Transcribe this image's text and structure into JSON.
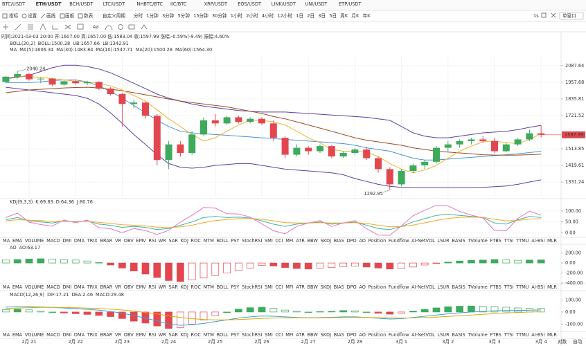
{
  "tabs": [
    "BTC/USDT",
    "ETH/USDT",
    "BCH/USDT",
    "LTC/USDT",
    "NHBTC/BTC",
    "IIC/BTC",
    "XRP/USDT",
    "EOS/USDT",
    "LINK/USDT",
    "UNI/USDT",
    "ETP/USDT"
  ],
  "active_tab": 1,
  "toolbar": [
    "指标",
    "设置",
    "画线",
    "画板",
    "数表"
  ],
  "custom_period": "自定义周期",
  "periods": [
    "分时",
    "1分钟",
    "3分钟",
    "5分钟",
    "15分钟",
    "30分钟",
    "1小时",
    "2小时",
    "4小时",
    "12小时",
    "1日",
    "2日",
    "3日",
    "5日",
    "周K",
    "月K",
    "年K"
  ],
  "active_period": 8,
  "speed": "1s",
  "window_mode": "单窗口",
  "tool_text": "Aa",
  "info": "时间:2021-03-03 20:00  开:1607.00  高:1657.00  低:1583.04  收:1597.99  涨幅:-0.59%(-9.49)  振幅:4.60%",
  "indicators": [
    "MA",
    "EMA",
    "VOLUME",
    "MACD",
    "DMI",
    "DMA",
    "TRIX",
    "BRAR",
    "VR",
    "OBV",
    "EMV",
    "RSI",
    "WR",
    "SAR",
    "KDJ",
    "ROC",
    "MTM",
    "BOLL",
    "PSY",
    "StochRSI",
    "SMI",
    "CCI",
    "MFI",
    "ATR",
    "BBW",
    "SKDJ",
    "BIAS",
    "DPO",
    "AO",
    "Position",
    "Fundflow",
    "AI-NetVOL",
    "LSUR",
    "BASIS",
    "TVolume",
    "FTBS",
    "TTSI",
    "TTMU",
    "AI-BSI",
    "MLR"
  ],
  "dim_indicators": [
    31,
    38
  ],
  "active_indicator_per_row": [
    14,
    28,
    3
  ],
  "scale_buttons": [
    "对数",
    "自动"
  ],
  "chart_data": [
    {
      "type": "candlestick",
      "log": true,
      "grid": true,
      "up_color": "#3daa5c",
      "down_color": "#e2474f",
      "categories": [
        null,
        null,
        "2月 21",
        null,
        null,
        null,
        "2月 22",
        null,
        null,
        null,
        "2月 23",
        null,
        null,
        null,
        "2月 24",
        null,
        null,
        null,
        "2月 25",
        null,
        null,
        null,
        "2月 26",
        null,
        null,
        null,
        "2月 27",
        null,
        null,
        null,
        "2月 28",
        null,
        null,
        null,
        "3月 1",
        null,
        null,
        null,
        "3月 2",
        null,
        null,
        null,
        "3月 3",
        null,
        null,
        null,
        "3月 4"
      ],
      "open": [
        1960,
        2000,
        2020,
        1980,
        1985,
        1940,
        1965,
        1950,
        1960,
        1910,
        1870,
        1800,
        1810,
        1720,
        1450,
        1540,
        1490,
        1600,
        1690,
        1670,
        1710,
        1680,
        1700,
        1670,
        1580,
        1480,
        1520,
        1500,
        1530,
        1470,
        1490,
        1510,
        1460,
        1400,
        1320,
        1390,
        1420,
        1440,
        1520,
        1540,
        1560,
        1570,
        1560,
        1500,
        1540,
        1570,
        1607
      ],
      "high": [
        2005,
        2040.24,
        2030,
        1995,
        1990,
        1975,
        1975,
        1970,
        1965,
        1920,
        1880,
        1830,
        1815,
        1730,
        1560,
        1560,
        1620,
        1710,
        1730,
        1720,
        1720,
        1710,
        1710,
        1690,
        1590,
        1540,
        1530,
        1540,
        1535,
        1500,
        1520,
        1525,
        1470,
        1410,
        1400,
        1430,
        1450,
        1530,
        1560,
        1570,
        1580,
        1590,
        1580,
        1550,
        1580,
        1630,
        1657
      ],
      "low": [
        1950,
        1985,
        1970,
        1950,
        1930,
        1930,
        1940,
        1935,
        1900,
        1860,
        1650,
        1770,
        1700,
        1420,
        1400,
        1470,
        1480,
        1590,
        1650,
        1660,
        1670,
        1670,
        1660,
        1560,
        1460,
        1470,
        1480,
        1490,
        1460,
        1460,
        1480,
        1450,
        1380,
        1292.95,
        1310,
        1380,
        1400,
        1430,
        1500,
        1520,
        1540,
        1550,
        1490,
        1495,
        1530,
        1560,
        1583.04
      ],
      "close": [
        2000,
        2020,
        1980,
        1985,
        1940,
        1965,
        1950,
        1960,
        1910,
        1870,
        1800,
        1810,
        1720,
        1450,
        1540,
        1490,
        1600,
        1690,
        1670,
        1710,
        1680,
        1700,
        1670,
        1580,
        1480,
        1520,
        1500,
        1530,
        1470,
        1490,
        1510,
        1460,
        1400,
        1320,
        1390,
        1420,
        1440,
        1520,
        1540,
        1560,
        1570,
        1560,
        1500,
        1540,
        1570,
        1607.48,
        1597.99
      ],
      "series": [
        {
          "color": "#5b3fa0",
          "values": [
            1985,
            1995,
            2010,
            2040,
            2070,
            2090,
            2090,
            2080,
            2060,
            2030,
            1990,
            1950,
            1910,
            1870,
            1840,
            1820,
            1800,
            1785,
            1775,
            1765,
            1755,
            1750,
            1745,
            1745,
            1745,
            1740,
            1735,
            1730,
            1725,
            1720,
            1715,
            1710,
            1700,
            1690,
            1650,
            1610,
            1590,
            1580,
            1580,
            1590,
            1600,
            1610,
            1615,
            1620,
            1630,
            1645,
            1657.66
          ]
        },
        {
          "color": "#5b3fa0",
          "values": [
            1920,
            1910,
            1900,
            1890,
            1880,
            1870,
            1860,
            1840,
            1800,
            1740,
            1670,
            1600,
            1540,
            1480,
            1430,
            1410,
            1405,
            1410,
            1420,
            1425,
            1430,
            1430,
            1420,
            1410,
            1400,
            1395,
            1390,
            1385,
            1380,
            1370,
            1350,
            1335,
            1320,
            1310,
            1305,
            1303,
            1303,
            1303,
            1303,
            1303,
            1303,
            1305,
            1308,
            1312,
            1320,
            1332,
            1342.91
          ]
        },
        {
          "color": "#4a90d9",
          "values": [
            1955,
            1955,
            1955,
            1960,
            1970,
            1975,
            1975,
            1960,
            1930,
            1890,
            1840,
            1790,
            1740,
            1690,
            1650,
            1620,
            1610,
            1605,
            1600,
            1595,
            1590,
            1585,
            1580,
            1575,
            1570,
            1565,
            1560,
            1555,
            1550,
            1545,
            1535,
            1520,
            1510,
            1500,
            1480,
            1460,
            1450,
            1450,
            1455,
            1460,
            1465,
            1470,
            1475,
            1480,
            1485,
            1492,
            1500.28
          ]
        },
        {
          "color": "#9c4a1f",
          "values": [
            1880,
            1890,
            1900,
            1905,
            1910,
            1915,
            1918,
            1920,
            1915,
            1905,
            1895,
            1880,
            1865,
            1850,
            1835,
            1820,
            1810,
            1800,
            1790,
            1780,
            1765,
            1750,
            1735,
            1715,
            1700,
            1680,
            1660,
            1640,
            1620,
            1600,
            1580,
            1565,
            1555,
            1545,
            1535,
            1520,
            1510,
            1500,
            1495,
            1490,
            1485,
            1480,
            1478,
            1477,
            1478,
            1480,
            1483.84
          ]
        },
        {
          "color": "#f0b429",
          "values": [
            1990,
            2000,
            2000,
            1995,
            1985,
            1975,
            1965,
            1960,
            1950,
            1930,
            1900,
            1860,
            1820,
            1760,
            1700,
            1650,
            1600,
            1560,
            1580,
            1620,
            1660,
            1690,
            1690,
            1680,
            1660,
            1620,
            1580,
            1550,
            1510,
            1500,
            1500,
            1495,
            1470,
            1430,
            1400,
            1380,
            1395,
            1420,
            1460,
            1500,
            1530,
            1555,
            1560,
            1550,
            1545,
            1570,
            1606.34
          ]
        }
      ],
      "ylim": [
        1256,
        2160
      ],
      "yticks": [
        1331.24,
        1419.61,
        1513.85,
        1721.52,
        1835.81,
        1957.68,
        2087.64
      ],
      "legend_rows": [
        {
          "title": "BOLL(20,2)",
          "items": [
            {
              "text": "BOLL:1500.28",
              "color": "#4a90d9"
            },
            {
              "text": "UB:1657.66",
              "color": "#5b3fa0"
            },
            {
              "text": "LB:1342.91",
              "color": "#5b3fa0"
            }
          ]
        },
        {
          "title": "MA",
          "items": [
            {
              "text": "MA(5):1606.34",
              "color": "#e0a800"
            },
            {
              "text": "MA(30):1483.84",
              "color": "#9c4a1f"
            },
            {
              "text": "MA(10):1547.71",
              "color": "#999999"
            },
            {
              "text": "MA(20):1500.28",
              "color": "#4a90d9"
            },
            {
              "text": "MA(60):1564.30",
              "color": "#9acd32"
            }
          ]
        }
      ]
    },
    {
      "type": "line",
      "title": "KDJ(9,3,3)",
      "items": [
        {
          "text": "K:69.83",
          "color": "#3bb3a0"
        },
        {
          "text": "D:64.36",
          "color": "#f5a623"
        },
        {
          "text": "J:80.76",
          "color": "#e377c2"
        }
      ],
      "series": [
        {
          "color": "#3bb3a0",
          "values": [
            60,
            70,
            55,
            50,
            45,
            55,
            50,
            55,
            40,
            35,
            25,
            30,
            25,
            15,
            20,
            35,
            50,
            70,
            75,
            70,
            72,
            68,
            55,
            40,
            30,
            40,
            45,
            50,
            40,
            45,
            50,
            35,
            20,
            15,
            30,
            50,
            65,
            80,
            85,
            80,
            75,
            70,
            45,
            40,
            60,
            75,
            69.83
          ]
        },
        {
          "color": "#f5a623",
          "values": [
            55,
            60,
            58,
            56,
            52,
            53,
            52,
            53,
            48,
            43,
            37,
            35,
            32,
            26,
            24,
            28,
            35,
            47,
            56,
            61,
            65,
            66,
            62,
            55,
            47,
            45,
            45,
            47,
            45,
            45,
            47,
            43,
            35,
            28,
            29,
            36,
            46,
            57,
            66,
            71,
            72,
            71,
            62,
            55,
            57,
            63,
            64.36
          ]
        },
        {
          "color": "#e377c2",
          "values": [
            70,
            90,
            49,
            38,
            31,
            59,
            46,
            59,
            24,
            19,
            1,
            20,
            11,
            -7,
            12,
            49,
            80,
            116,
            113,
            88,
            86,
            72,
            41,
            10,
            -4,
            30,
            45,
            56,
            30,
            45,
            56,
            19,
            -10,
            -11,
            32,
            78,
            103,
            126,
            123,
            98,
            81,
            68,
            11,
            10,
            66,
            99,
            80.76
          ]
        }
      ],
      "ylim": [
        -14,
        128
      ],
      "yticks": [
        {
          "value": 0,
          "label": "0.00"
        },
        {
          "value": 50,
          "label": "50.00"
        },
        {
          "value": 100,
          "label": "100.00"
        }
      ],
      "grid": true
    },
    {
      "type": "bar",
      "title": "AO",
      "items": [
        {
          "text": "AO:63.17",
          "color": "#8e44ad"
        }
      ],
      "up_color": "#3daa5c",
      "down_color": "#e2474f",
      "values": [
        60,
        70,
        80,
        85,
        80,
        70,
        60,
        40,
        10,
        -40,
        -100,
        -160,
        -220,
        -290,
        -350,
        -370,
        -340,
        -300,
        -250,
        -200,
        -150,
        -100,
        -50,
        -60,
        -90,
        -110,
        -120,
        -100,
        -90,
        -70,
        -60,
        -80,
        -100,
        -120,
        -110,
        -80,
        -40,
        -10,
        20,
        40,
        55,
        60,
        70,
        65,
        55,
        60,
        63.17
      ],
      "ylim": [
        -400,
        250
      ],
      "yticks": [
        {
          "value": -400,
          "label": "-400.00"
        },
        {
          "value": -200,
          "label": "-200.00"
        },
        {
          "value": 0,
          "label": "0.00"
        },
        {
          "value": 200,
          "label": "200.00"
        }
      ],
      "grid": false
    },
    {
      "type": "bar",
      "title": "MACD(12,26,9)",
      "items": [
        {
          "text": "DIF:17.21",
          "color": "#3aa0d8"
        },
        {
          "text": "DEA:2.46",
          "color": "#e0a800"
        },
        {
          "text": "MACD:29.48",
          "color": "#8e44ad"
        }
      ],
      "up_color": "#3daa5c",
      "down_color": "#e2474f",
      "values": [
        20,
        24,
        18,
        8,
        0,
        -8,
        -14,
        -20,
        -28,
        -38,
        -54,
        -76,
        -92,
        -116,
        -136,
        -130,
        -100,
        -66,
        -30,
        0,
        24,
        36,
        40,
        30,
        16,
        6,
        0,
        4,
        6,
        12,
        10,
        0,
        -10,
        -18,
        -10,
        8,
        22,
        34,
        44,
        48,
        50,
        48,
        46,
        40,
        34,
        30,
        29.48
      ],
      "series": [
        {
          "color": "#3aa0d8",
          "values": [
            40,
            45,
            45,
            42,
            38,
            33,
            28,
            22,
            15,
            5,
            -10,
            -30,
            -50,
            -75,
            -100,
            -110,
            -105,
            -95,
            -80,
            -65,
            -50,
            -40,
            -33,
            -35,
            -40,
            -45,
            -48,
            -46,
            -44,
            -40,
            -40,
            -45,
            -52,
            -58,
            -55,
            -45,
            -35,
            -25,
            -15,
            -7,
            0,
            5,
            10,
            12,
            13,
            15,
            17.21
          ]
        },
        {
          "color": "#e0a800",
          "values": [
            30,
            33,
            36,
            38,
            38,
            37,
            35,
            32,
            29,
            24,
            17,
            8,
            -4,
            -17,
            -32,
            -45,
            -55,
            -62,
            -65,
            -65,
            -62,
            -58,
            -53,
            -50,
            -48,
            -48,
            -48,
            -48,
            -47,
            -46,
            -45,
            -45,
            -47,
            -49,
            -50,
            -49,
            -46,
            -42,
            -37,
            -31,
            -25,
            -19,
            -13,
            -8,
            -4,
            0,
            2.46
          ]
        }
      ],
      "ylim": [
        -150,
        120
      ],
      "yticks": [
        {
          "value": -100,
          "label": "-100.00"
        },
        {
          "value": 0,
          "label": "0.00"
        },
        {
          "value": 100,
          "label": "100.00"
        }
      ],
      "grid": false
    }
  ]
}
